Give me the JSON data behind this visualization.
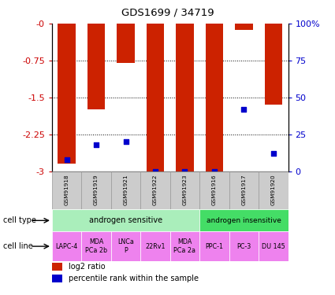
{
  "title": "GDS1699 / 34719",
  "samples": [
    "GSM91918",
    "GSM91919",
    "GSM91921",
    "GSM91922",
    "GSM91923",
    "GSM91916",
    "GSM91917",
    "GSM91920"
  ],
  "log2_ratio": [
    -2.85,
    -1.75,
    -0.8,
    -3.0,
    -3.0,
    -3.0,
    -0.12,
    -1.65
  ],
  "percentile_rank": [
    8,
    18,
    20,
    0,
    0,
    0,
    42,
    12
  ],
  "ylim_left": [
    -3,
    0
  ],
  "ylim_right": [
    0,
    100
  ],
  "yticks_left": [
    0,
    -0.75,
    -1.5,
    -2.25,
    -3
  ],
  "yticks_right": [
    0,
    25,
    50,
    75,
    100
  ],
  "cell_type_labels": [
    "androgen sensitive",
    "androgen insensitive"
  ],
  "cell_type_colors": [
    "#aaeebb",
    "#44dd66"
  ],
  "cell_line_labels": [
    "LAPC-4",
    "MDA\nPCa 2b",
    "LNCa\nP",
    "22Rv1",
    "MDA\nPCa 2a",
    "PPC-1",
    "PC-3",
    "DU 145"
  ],
  "cell_line_color": "#ee82ee",
  "bar_color": "#cc2200",
  "dot_color": "#0000cc",
  "sample_bg_color": "#cccccc",
  "sample_border_color": "#999999",
  "legend_log2": "log2 ratio",
  "legend_pct": "percentile rank within the sample",
  "left_axis_color": "#cc0000",
  "right_axis_color": "#0000cc",
  "grid_lines": [
    -0.75,
    -1.5,
    -2.25
  ]
}
